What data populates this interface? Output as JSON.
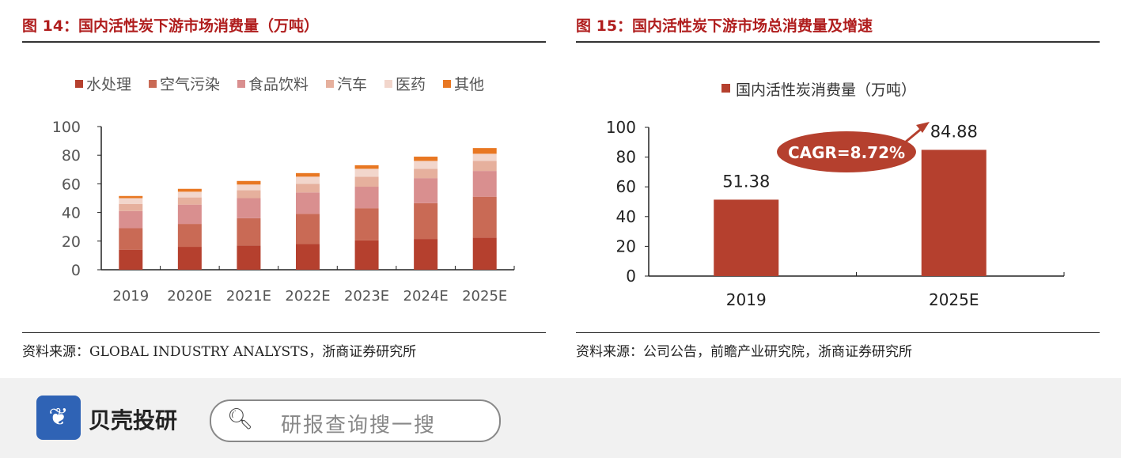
{
  "left": {
    "title": "图 14：国内活性炭下游市场消费量（万吨）",
    "source": "资料来源：GLOBAL INDUSTRY ANALYSTS，浙商证券研究所"
  },
  "right": {
    "title": "图 15：国内活性炭下游市场总消费量及增速",
    "source": "资料来源：公司公告，前瞻产业研究院，浙商证券研究所"
  },
  "chart_data": [
    {
      "type": "bar",
      "stacked": true,
      "categories": [
        "2019",
        "2020E",
        "2021E",
        "2022E",
        "2023E",
        "2024E",
        "2025E"
      ],
      "ylim": [
        0,
        100
      ],
      "yticks": [
        0,
        20,
        40,
        60,
        80,
        100
      ],
      "legend": "top",
      "series": [
        {
          "name": "水处理",
          "color": "#b5402e",
          "values": [
            14,
            16,
            17,
            18,
            20.5,
            21.5,
            22.5
          ]
        },
        {
          "name": "空气污染",
          "color": "#c96a55",
          "values": [
            15,
            16,
            19,
            21,
            22.5,
            25,
            28.5
          ]
        },
        {
          "name": "食品饮料",
          "color": "#d98f8f",
          "values": [
            12,
            13.5,
            14,
            15,
            15,
            17.5,
            18
          ]
        },
        {
          "name": "汽车",
          "color": "#e6b09d",
          "values": [
            5,
            5,
            5.5,
            6,
            7,
            6.5,
            7
          ]
        },
        {
          "name": "医药",
          "color": "#f2d6cc",
          "values": [
            4,
            4,
            4,
            5,
            5.5,
            5.5,
            5
          ]
        },
        {
          "name": "其他",
          "color": "#e87722",
          "values": [
            1.5,
            2,
            2.5,
            2.5,
            2.5,
            3,
            4
          ]
        }
      ]
    },
    {
      "type": "bar",
      "categories": [
        "2019",
        "2025E"
      ],
      "ylim": [
        0,
        100
      ],
      "yticks": [
        0,
        20,
        40,
        60,
        80,
        100
      ],
      "legend": "top",
      "series": [
        {
          "name": "国内活性炭消费量（万吨）",
          "color": "#b5402e",
          "values": [
            51.38,
            84.88
          ]
        }
      ],
      "data_labels": [
        "51.38",
        "84.88"
      ],
      "annotation": "CAGR=8.72%"
    }
  ],
  "footer": {
    "logo_icon": "shell-logo-icon",
    "brand": "贝壳投研",
    "search_icon": "search-icon",
    "search_placeholder": "研报查询搜一搜"
  }
}
